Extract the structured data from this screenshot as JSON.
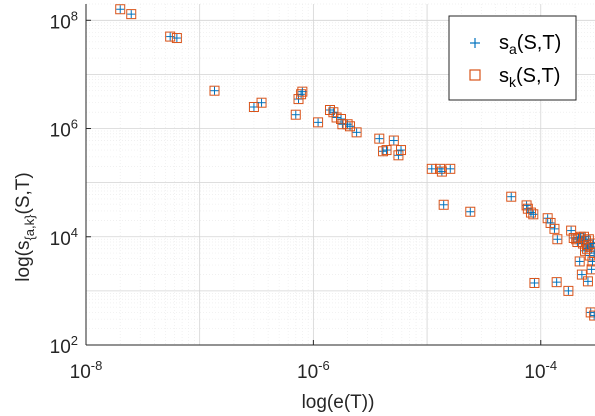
{
  "chart_data": {
    "type": "scatter",
    "xscale": "log",
    "yscale": "log",
    "xlim": [
      1e-08,
      0.0003
    ],
    "ylim": [
      100,
      200000000
    ],
    "xticks": [
      {
        "value": 1e-08,
        "base": "10",
        "exp": "-8"
      },
      {
        "value": 1e-06,
        "base": "10",
        "exp": "-6"
      },
      {
        "value": 0.0001,
        "base": "10",
        "exp": "-4"
      }
    ],
    "yticks": [
      {
        "value": 100,
        "base": "10",
        "exp": "2"
      },
      {
        "value": 10000,
        "base": "10",
        "exp": "4"
      },
      {
        "value": 1000000,
        "base": "10",
        "exp": "6"
      },
      {
        "value": 100000000,
        "base": "10",
        "exp": "8"
      }
    ],
    "xlabel": "log(e(T))",
    "ylabel": {
      "main": "log(s",
      "sub": "{a,k}",
      "tail": "(S,T)"
    },
    "grid": true,
    "legend_position": "top-right",
    "series": [
      {
        "name": {
          "main": "s",
          "sub": "a",
          "tail": "(S,T)"
        },
        "marker": "plus",
        "color": "#0072BD"
      },
      {
        "name": {
          "main": "s",
          "sub": "k",
          "tail": "(S,T)"
        },
        "marker": "square",
        "color": "#D95319"
      }
    ],
    "points": [
      [
        2e-08,
        160000000.0
      ],
      [
        2.5e-08,
        130000000.0
      ],
      [
        5.5e-08,
        50000000.0
      ],
      [
        6.3e-08,
        47000000.0
      ],
      [
        1.35e-07,
        5000000.0
      ],
      [
        3e-07,
        2500000.0
      ],
      [
        3.5e-07,
        3000000.0
      ],
      [
        7e-07,
        1800000.0
      ],
      [
        7.4e-07,
        3500000.0
      ],
      [
        7.8e-07,
        4300000.0
      ],
      [
        8e-07,
        4800000.0
      ],
      [
        1.1e-06,
        1300000.0
      ],
      [
        1.4e-06,
        2200000.0
      ],
      [
        1.5e-06,
        2000000.0
      ],
      [
        1.6e-06,
        1600000.0
      ],
      [
        1.75e-06,
        1500000.0
      ],
      [
        1.8e-06,
        1200000.0
      ],
      [
        2e-06,
        1200000.0
      ],
      [
        2.1e-06,
        1100000.0
      ],
      [
        2.4e-06,
        850000.0
      ],
      [
        3.8e-06,
        650000.0
      ],
      [
        4.1e-06,
        380000.0
      ],
      [
        4.4e-06,
        400000.0
      ],
      [
        5.1e-06,
        600000.0
      ],
      [
        5.6e-06,
        320000.0
      ],
      [
        5.9e-06,
        400000.0
      ],
      [
        1.1e-05,
        180000.0
      ],
      [
        1.3e-05,
        180000.0
      ],
      [
        1.35e-05,
        160000.0
      ],
      [
        1.6e-05,
        180000.0
      ],
      [
        1.4e-05,
        39000.0
      ],
      [
        2.4e-05,
        29000.0
      ],
      [
        5.5e-05,
        55000.0
      ],
      [
        7.5e-05,
        38000.0
      ],
      [
        7.7e-05,
        33000.0
      ],
      [
        8.2e-05,
        28000.0
      ],
      [
        8.6e-05,
        26000.0
      ],
      [
        8.8e-05,
        1400.0
      ],
      [
        0.000115,
        22000.0
      ],
      [
        0.000122,
        18000.0
      ],
      [
        0.000132,
        14000.0
      ],
      [
        0.00014,
        9000.0
      ],
      [
        0.000138,
        1450.0
      ],
      [
        0.000175,
        1000.0
      ],
      [
        0.000185,
        13000.0
      ],
      [
        0.000195,
        9500.0
      ],
      [
        0.000205,
        9000.0
      ],
      [
        0.00021,
        8000.0
      ],
      [
        0.000215,
        9500.0
      ],
      [
        0.000225,
        10000.0
      ],
      [
        0.000235,
        7500.0
      ],
      [
        0.00024,
        10000.0
      ],
      [
        0.000245,
        5500.0
      ],
      [
        0.00025,
        8500.0
      ],
      [
        0.000255,
        6000.0
      ],
      [
        0.00026,
        7000.0
      ],
      [
        0.000265,
        9000.0
      ],
      [
        0.00027,
        4500.0
      ],
      [
        0.000275,
        6500.0
      ],
      [
        0.00028,
        2500.0
      ],
      [
        0.000285,
        3500.0
      ],
      [
        0.00029,
        7500.0
      ],
      [
        0.000295,
        5000.0
      ],
      [
        0.00022,
        3500.0
      ],
      [
        0.00023,
        2000.0
      ],
      [
        0.00026,
        1500.0
      ],
      [
        0.000275,
        400
      ],
      [
        0.000295,
        350
      ]
    ]
  }
}
